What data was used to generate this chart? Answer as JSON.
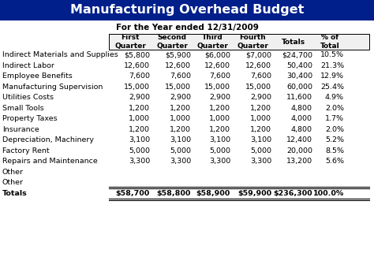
{
  "title": "Manufacturing Overhead Budget",
  "subtitle": "For the Year ended 12/31/2009",
  "title_bg": "#001f8a",
  "title_color": "#ffffff",
  "col_headers": [
    "First\nQuarter",
    "Second\nQuarter",
    "Third\nQuarter",
    "Fourth\nQuarter",
    "Totals",
    "% of\nTotal"
  ],
  "row_labels": [
    "Indirect Materials and Supplies",
    "Indirect Labor",
    "Employee Benefits",
    "Manufacturing Supervision",
    "Utilities Costs",
    "Small Tools",
    "Property Taxes",
    "Insurance",
    "Depreciation, Machinery",
    "Factory Rent",
    "Repairs and Maintenance",
    "Other",
    "Other",
    "Totals"
  ],
  "table_data": [
    [
      "$5,800",
      "$5,900",
      "$6,000",
      "$7,000",
      "$24,700",
      "10.5%"
    ],
    [
      "12,600",
      "12,600",
      "12,600",
      "12,600",
      "50,400",
      "21.3%"
    ],
    [
      "7,600",
      "7,600",
      "7,600",
      "7,600",
      "30,400",
      "12.9%"
    ],
    [
      "15,000",
      "15,000",
      "15,000",
      "15,000",
      "60,000",
      "25.4%"
    ],
    [
      "2,900",
      "2,900",
      "2,900",
      "2,900",
      "11,600",
      "4.9%"
    ],
    [
      "1,200",
      "1,200",
      "1,200",
      "1,200",
      "4,800",
      "2.0%"
    ],
    [
      "1,000",
      "1,000",
      "1,000",
      "1,000",
      "4,000",
      "1.7%"
    ],
    [
      "1,200",
      "1,200",
      "1,200",
      "1,200",
      "4,800",
      "2.0%"
    ],
    [
      "3,100",
      "3,100",
      "3,100",
      "3,100",
      "12,400",
      "5.2%"
    ],
    [
      "5,000",
      "5,000",
      "5,000",
      "5,000",
      "20,000",
      "8.5%"
    ],
    [
      "3,300",
      "3,300",
      "3,300",
      "3,300",
      "13,200",
      "5.6%"
    ],
    [
      "",
      "",
      "",
      "",
      "",
      ""
    ],
    [
      "",
      "",
      "",
      "",
      "",
      ""
    ],
    [
      "$58,700",
      "$58,800",
      "$58,900",
      "$59,900",
      "$236,300",
      "100.0%"
    ]
  ],
  "totals_row_idx": 13,
  "bg_color": "#ffffff",
  "table_border_color": "#000000",
  "title_fontsize": 11.5,
  "subtitle_fontsize": 7.5,
  "header_fontsize": 6.5,
  "data_fontsize": 6.8
}
